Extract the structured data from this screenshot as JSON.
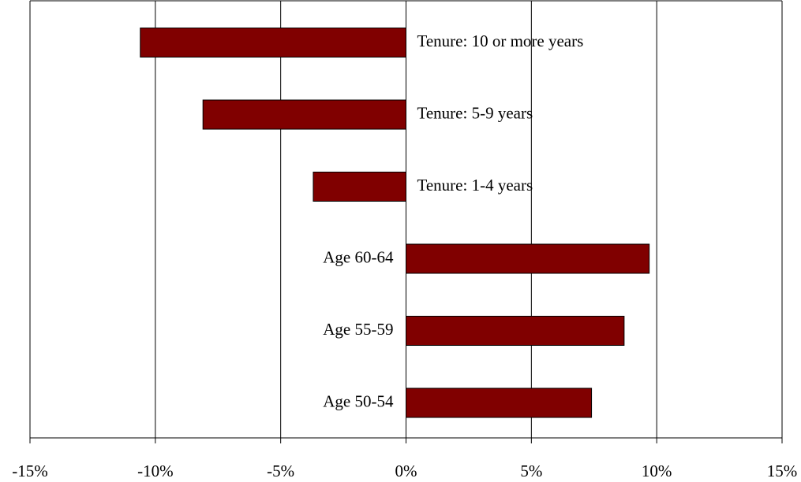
{
  "chart_data": {
    "type": "hbar",
    "categories": [
      "Tenure: 10 or more years",
      "Tenure: 5-9 years",
      "Tenure: 1-4 years",
      "Age 60-64",
      "Age 55-59",
      "Age 50-54"
    ],
    "values": [
      -10.6,
      -8.1,
      -3.7,
      9.7,
      8.7,
      7.4
    ],
    "color": "#800000",
    "xlim": [
      -15,
      15
    ],
    "xticks": [
      {
        "value": -15,
        "label": "-15%"
      },
      {
        "value": -10,
        "label": "-10%"
      },
      {
        "value": -5,
        "label": "-5%"
      },
      {
        "value": 0,
        "label": "0%"
      },
      {
        "value": 5,
        "label": "5%"
      },
      {
        "value": 10,
        "label": "10%"
      },
      {
        "value": 15,
        "label": "15%"
      }
    ],
    "grid": true
  }
}
